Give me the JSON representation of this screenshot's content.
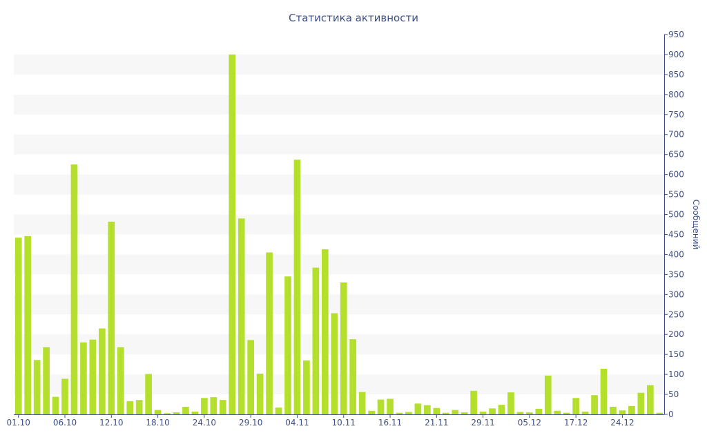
{
  "chart_data": {
    "type": "bar",
    "title": "Статистика активности",
    "xlabel": "",
    "ylabel": "Сообщений",
    "y_axis_position": "right",
    "ylim": [
      0,
      950
    ],
    "y_ticks": [
      0,
      50,
      100,
      150,
      200,
      250,
      300,
      350,
      400,
      450,
      500,
      550,
      600,
      650,
      700,
      750,
      800,
      850,
      900,
      950
    ],
    "x_tick_labels": [
      "01.10",
      "06.10",
      "12.10",
      "18.10",
      "24.10",
      "29.10",
      "04.11",
      "10.11",
      "16.11",
      "21.11",
      "29.11",
      "05.12",
      "17.12",
      "24.12"
    ],
    "x_tick_indices": [
      0,
      5,
      10,
      15,
      20,
      25,
      30,
      35,
      40,
      45,
      50,
      55,
      60,
      65
    ],
    "grid": "alternating horizontal bands",
    "colors": {
      "bar": "#b5df2d",
      "band": "#f7f7f7",
      "axis": "#3d4f8a",
      "text": "#3d4f8a"
    },
    "values": [
      442,
      446,
      136,
      168,
      44,
      89,
      625,
      180,
      187,
      215,
      482,
      168,
      33,
      36,
      101,
      11,
      3,
      5,
      19,
      7,
      41,
      43,
      36,
      900,
      490,
      186,
      102,
      405,
      17,
      345,
      637,
      135,
      367,
      413,
      253,
      330,
      188,
      56,
      9,
      37,
      39,
      4,
      6,
      27,
      23,
      16,
      4,
      11,
      5,
      59,
      7,
      15,
      24,
      55,
      6,
      5,
      14,
      97,
      9,
      4,
      41,
      7,
      48,
      114,
      19,
      10,
      21,
      54,
      73,
      4
    ]
  }
}
